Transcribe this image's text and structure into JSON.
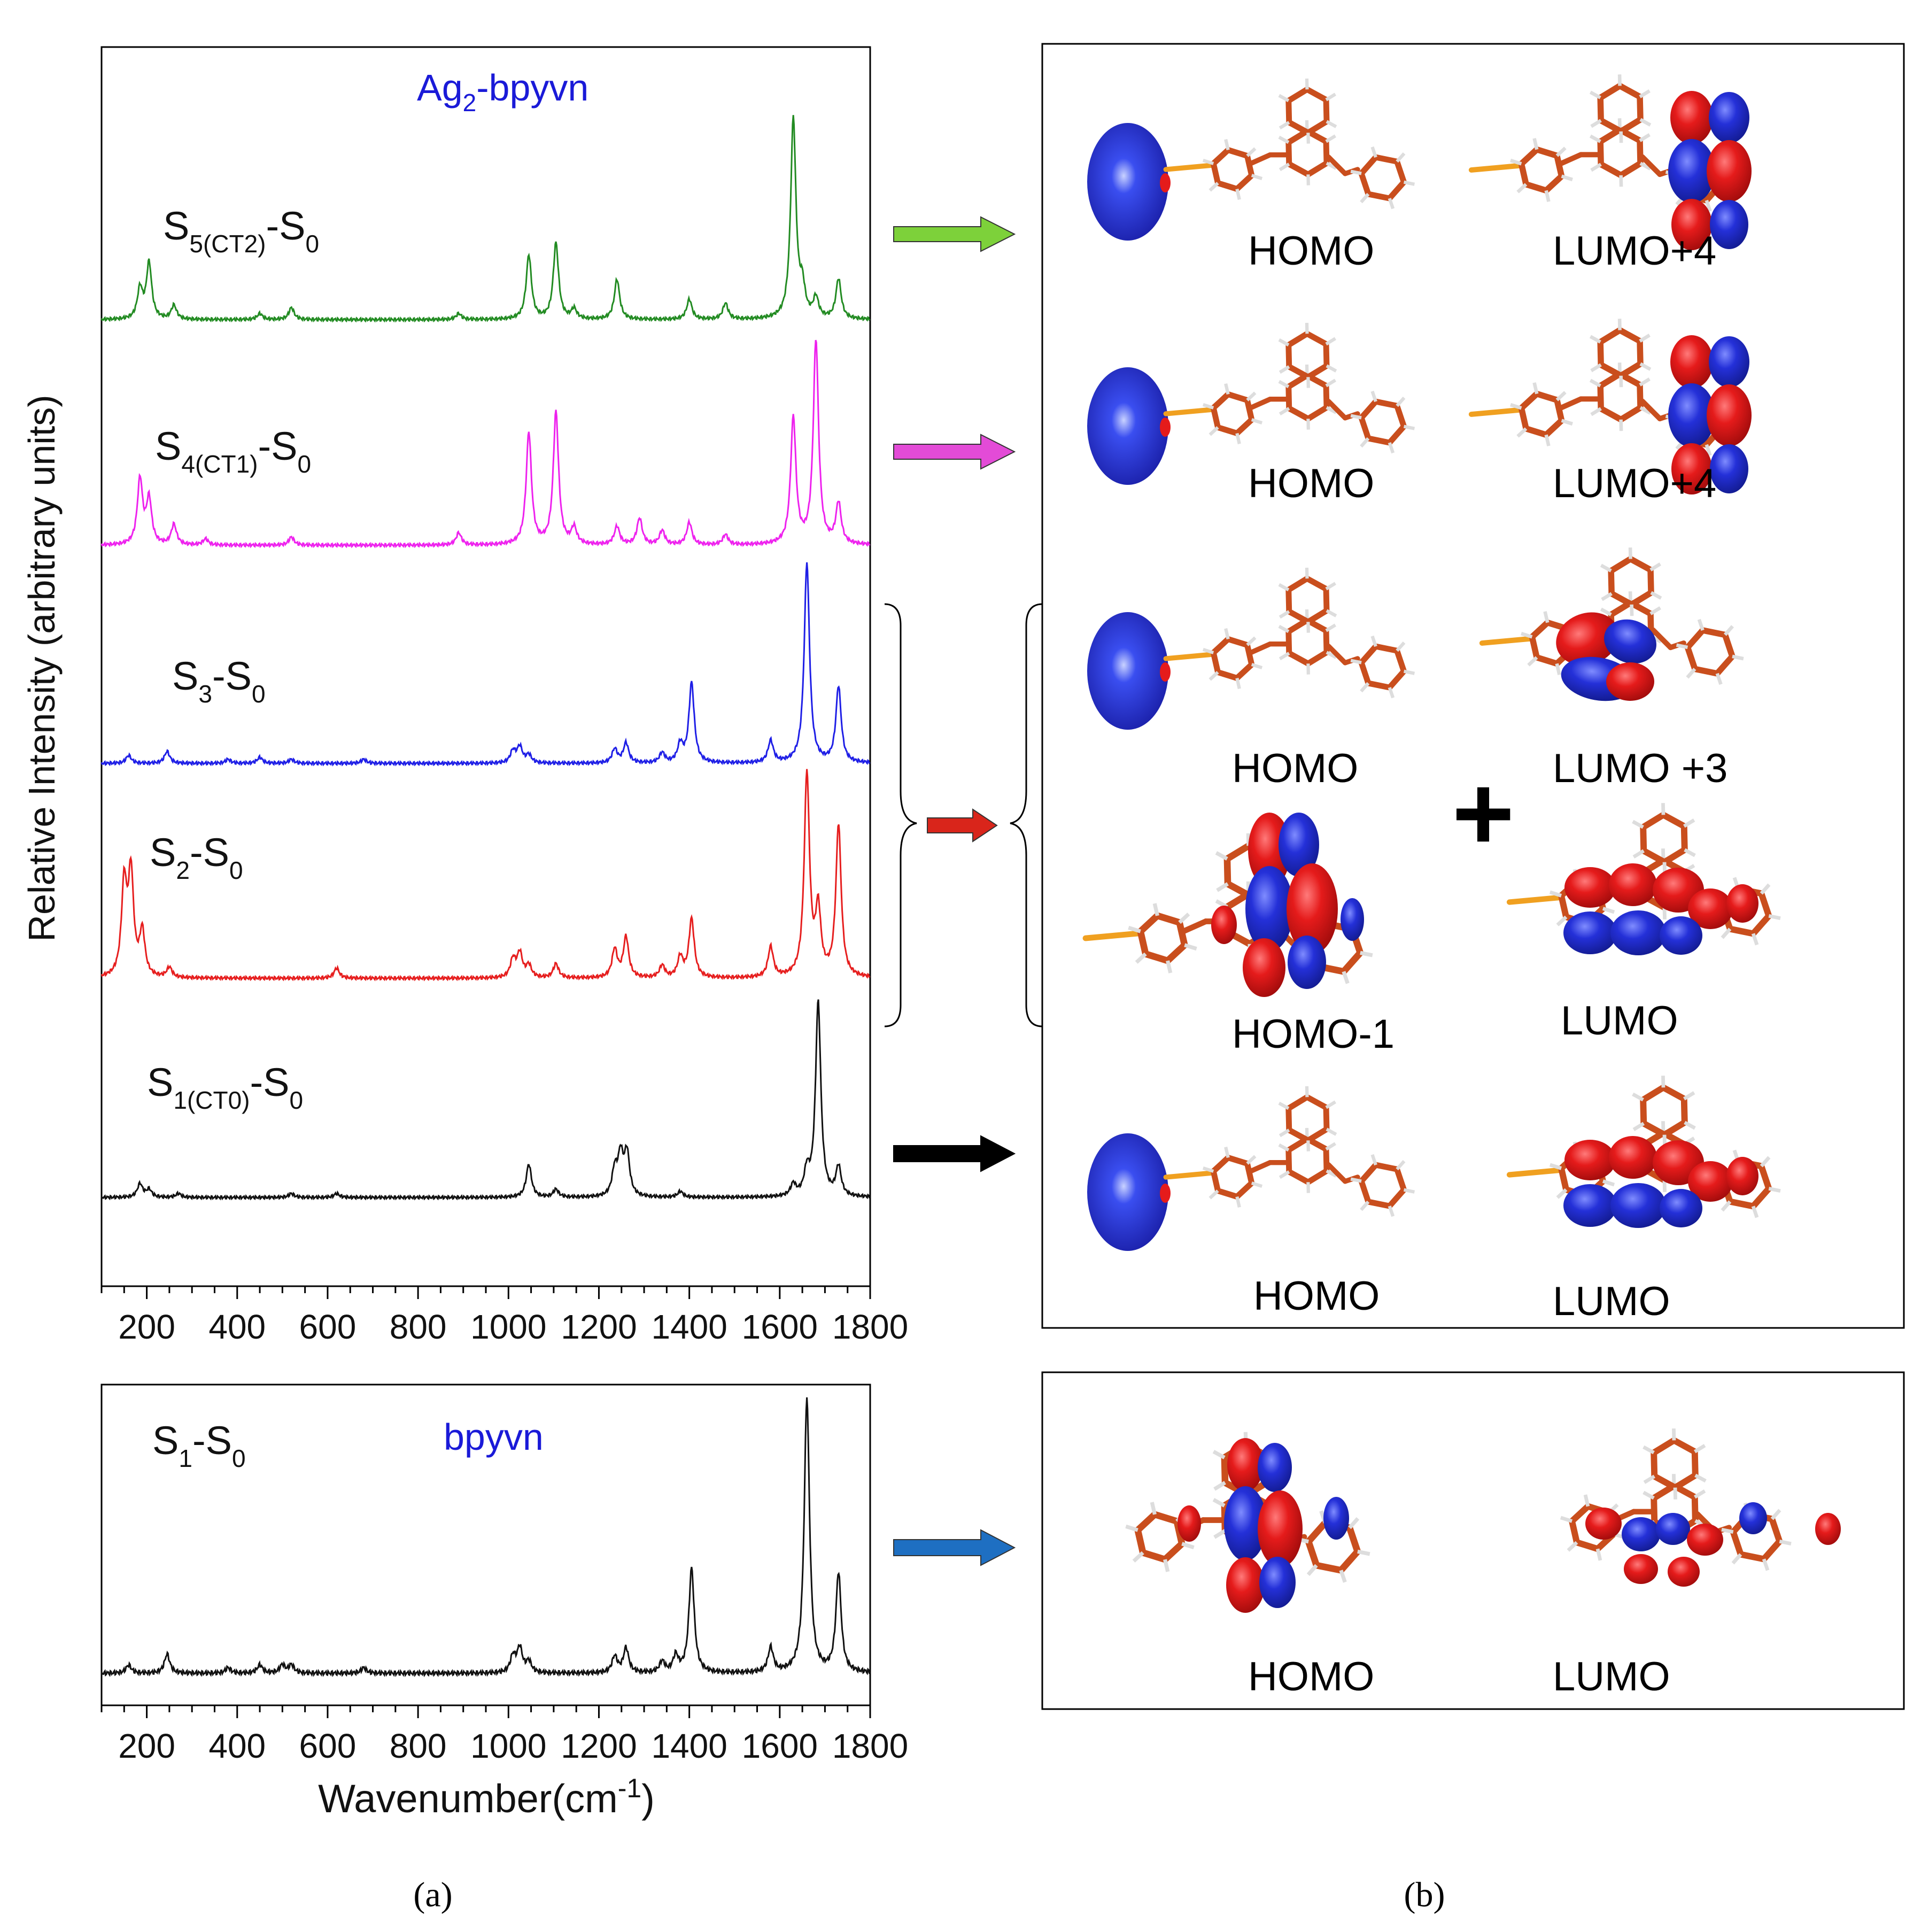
{
  "chart_data": [
    {
      "id": "panel-a-top",
      "type": "line",
      "title_parts": {
        "main": "Ag",
        "sub": "2",
        "rest": "-bpyvn"
      },
      "xlabel": "Wavenumber(cm",
      "xlabel_sup": "-1",
      "xlabel_end": ")",
      "ylabel": "Relative Intensity (arbitrary units)",
      "xlim": [
        100,
        1800
      ],
      "xticks": [
        "200",
        "400",
        "600",
        "800",
        "1000",
        "1200",
        "1400",
        "1600",
        "1800"
      ],
      "series": [
        {
          "name": "S5(CT2)-S0",
          "label": {
            "a": "S",
            "b": "5(CT2)",
            "c": "-S",
            "d": "0"
          },
          "color": "#228b22",
          "peaks": [
            [
              185,
              0.15
            ],
            [
              205,
              0.28
            ],
            [
              260,
              0.07
            ],
            [
              450,
              0.03
            ],
            [
              520,
              0.06
            ],
            [
              890,
              0.03
            ],
            [
              1045,
              0.32
            ],
            [
              1105,
              0.38
            ],
            [
              1145,
              0.05
            ],
            [
              1240,
              0.2
            ],
            [
              1400,
              0.1
            ],
            [
              1480,
              0.08
            ],
            [
              1630,
              1.0
            ],
            [
              1650,
              0.14
            ],
            [
              1680,
              0.1
            ],
            [
              1730,
              0.2
            ]
          ]
        },
        {
          "name": "S4(CT1)-S0",
          "label": {
            "a": "S",
            "b": "4(CT1)",
            "c": "-S",
            "d": "0"
          },
          "color": "#ee22ee",
          "peaks": [
            [
              185,
              0.32
            ],
            [
              205,
              0.22
            ],
            [
              260,
              0.1
            ],
            [
              330,
              0.03
            ],
            [
              520,
              0.04
            ],
            [
              890,
              0.06
            ],
            [
              1045,
              0.55
            ],
            [
              1105,
              0.65
            ],
            [
              1145,
              0.08
            ],
            [
              1240,
              0.09
            ],
            [
              1290,
              0.13
            ],
            [
              1340,
              0.07
            ],
            [
              1400,
              0.11
            ],
            [
              1480,
              0.05
            ],
            [
              1630,
              0.62
            ],
            [
              1680,
              1.0
            ],
            [
              1730,
              0.2
            ]
          ]
        },
        {
          "name": "S3-S0",
          "label": {
            "a": "S",
            "b": "3",
            "c": "-S",
            "d": "0"
          },
          "color": "#1f1fe6",
          "peaks": [
            [
              160,
              0.04
            ],
            [
              245,
              0.06
            ],
            [
              380,
              0.02
            ],
            [
              450,
              0.03
            ],
            [
              520,
              0.02
            ],
            [
              680,
              0.02
            ],
            [
              1010,
              0.06
            ],
            [
              1025,
              0.08
            ],
            [
              1045,
              0.04
            ],
            [
              1235,
              0.07
            ],
            [
              1260,
              0.1
            ],
            [
              1340,
              0.05
            ],
            [
              1380,
              0.09
            ],
            [
              1405,
              0.4
            ],
            [
              1580,
              0.11
            ],
            [
              1660,
              1.0
            ],
            [
              1730,
              0.38
            ]
          ]
        },
        {
          "name": "S2-S0",
          "label": {
            "a": "S",
            "b": "2",
            "c": "-S",
            "d": "0"
          },
          "color": "#e61e1e",
          "peaks": [
            [
              150,
              0.45
            ],
            [
              165,
              0.5
            ],
            [
              190,
              0.22
            ],
            [
              250,
              0.05
            ],
            [
              620,
              0.05
            ],
            [
              1010,
              0.09
            ],
            [
              1025,
              0.12
            ],
            [
              1045,
              0.06
            ],
            [
              1105,
              0.07
            ],
            [
              1235,
              0.14
            ],
            [
              1260,
              0.2
            ],
            [
              1340,
              0.06
            ],
            [
              1380,
              0.1
            ],
            [
              1405,
              0.29
            ],
            [
              1580,
              0.15
            ],
            [
              1660,
              1.0
            ],
            [
              1685,
              0.32
            ],
            [
              1730,
              0.75
            ]
          ]
        },
        {
          "name": "S1(CT0)-S0",
          "label": {
            "a": "S",
            "b": "1(CT0)",
            "c": "-S",
            "d": "0"
          },
          "color": "#111111",
          "peaks": [
            [
              185,
              0.07
            ],
            [
              205,
              0.04
            ],
            [
              270,
              0.02
            ],
            [
              520,
              0.02
            ],
            [
              620,
              0.02
            ],
            [
              1045,
              0.17
            ],
            [
              1105,
              0.04
            ],
            [
              1235,
              0.13
            ],
            [
              1248,
              0.2
            ],
            [
              1262,
              0.22
            ],
            [
              1380,
              0.03
            ],
            [
              1630,
              0.06
            ],
            [
              1660,
              0.12
            ],
            [
              1685,
              1.0
            ],
            [
              1730,
              0.15
            ]
          ]
        }
      ]
    },
    {
      "id": "panel-a-bottom",
      "type": "line",
      "title": "bpyvn",
      "xlim": [
        100,
        1800
      ],
      "xticks": [
        "200",
        "400",
        "600",
        "800",
        "1000",
        "1200",
        "1400",
        "1600",
        "1800"
      ],
      "series": [
        {
          "name": "S1-S0",
          "label": {
            "a": "S",
            "b": "1",
            "c": "-S",
            "d": "0"
          },
          "color": "#111111",
          "peaks": [
            [
              160,
              0.03
            ],
            [
              245,
              0.07
            ],
            [
              380,
              0.02
            ],
            [
              450,
              0.03
            ],
            [
              500,
              0.03
            ],
            [
              520,
              0.03
            ],
            [
              680,
              0.02
            ],
            [
              1010,
              0.06
            ],
            [
              1025,
              0.09
            ],
            [
              1045,
              0.04
            ],
            [
              1235,
              0.06
            ],
            [
              1260,
              0.09
            ],
            [
              1340,
              0.04
            ],
            [
              1370,
              0.06
            ],
            [
              1405,
              0.38
            ],
            [
              1580,
              0.09
            ],
            [
              1660,
              1.0
            ],
            [
              1730,
              0.36
            ]
          ]
        }
      ]
    }
  ],
  "orbitals": {
    "rows": [
      {
        "left": "HOMO",
        "right": "LUMO+4",
        "arrow_color": "#7dd13a"
      },
      {
        "left": "HOMO",
        "right": "LUMO+4",
        "arrow_color": "#e34bd7"
      },
      {
        "left": "HOMO",
        "right": "LUMO +3"
      },
      {
        "left": "HOMO-1",
        "right": "LUMO",
        "arrow_color": "#d9251b"
      },
      {
        "left": "HOMO",
        "right": "LUMO",
        "arrow_color": "#000000"
      }
    ],
    "plus": "+",
    "bottom": {
      "left": "HOMO",
      "right": "LUMO",
      "arrow_color": "#1e6fc2"
    }
  },
  "captions": {
    "a": "(a)",
    "b": "(b)"
  }
}
